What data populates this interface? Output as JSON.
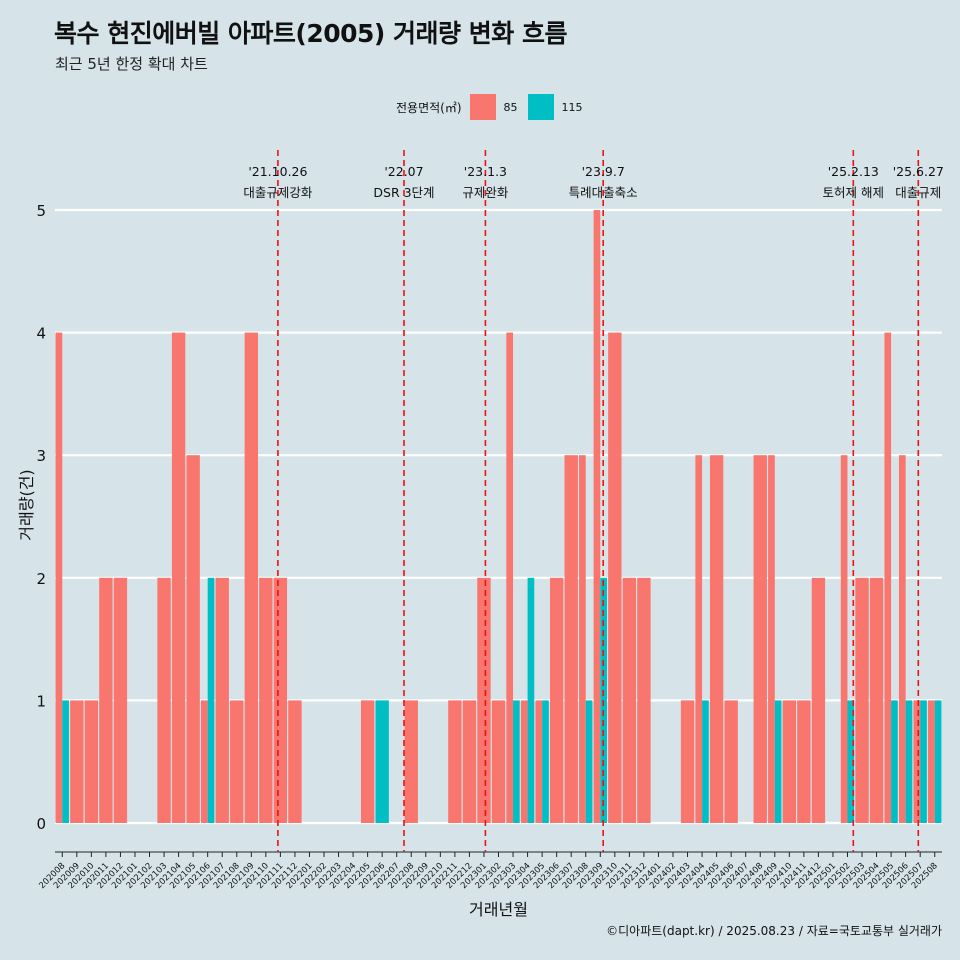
{
  "title": "복수 현진에버빌 아파트(2005) 거래량 변화 흐름",
  "subtitle": "최근 5년 한정 확대 차트",
  "legend_title": "전용면적(㎡)",
  "caption": "©디아파트(dapt.kr) / 2025.08.23 / 자료=국토교통부 실거래가",
  "colors": {
    "s85": "#f8766d",
    "s115": "#00bfc4",
    "background": "#d6e4ea",
    "event_line": "#ee1111"
  },
  "chart_data": {
    "type": "bar",
    "xlabel": "거래년월",
    "ylabel": "거래량(건)",
    "ylim": [
      0,
      5
    ],
    "yticks": [
      0,
      1,
      2,
      3,
      4,
      5
    ],
    "grid": true,
    "legend_position": "top",
    "categories": [
      "202008",
      "202009",
      "202010",
      "202011",
      "202012",
      "202101",
      "202102",
      "202103",
      "202104",
      "202105",
      "202106",
      "202107",
      "202108",
      "202109",
      "202110",
      "202111",
      "202112",
      "202201",
      "202202",
      "202203",
      "202204",
      "202205",
      "202206",
      "202207",
      "202208",
      "202209",
      "202210",
      "202211",
      "202212",
      "202301",
      "202302",
      "202303",
      "202304",
      "202305",
      "202306",
      "202307",
      "202308",
      "202309",
      "202310",
      "202311",
      "202312",
      "202401",
      "202402",
      "202403",
      "202404",
      "202405",
      "202406",
      "202407",
      "202408",
      "202409",
      "202410",
      "202411",
      "202412",
      "202501",
      "202502",
      "202503",
      "202504",
      "202505",
      "202506",
      "202507",
      "202508"
    ],
    "series": [
      {
        "name": "85",
        "values": [
          4,
          1,
          1,
          2,
          2,
          0,
          0,
          2,
          4,
          3,
          1,
          2,
          1,
          4,
          2,
          2,
          1,
          0,
          0,
          0,
          0,
          1,
          0,
          0,
          1,
          0,
          0,
          1,
          1,
          2,
          1,
          4,
          1,
          1,
          2,
          3,
          3,
          5,
          4,
          2,
          2,
          0,
          0,
          1,
          3,
          3,
          1,
          0,
          3,
          3,
          1,
          1,
          2,
          0,
          3,
          2,
          2,
          4,
          3,
          1,
          1
        ]
      },
      {
        "name": "115",
        "values": [
          1,
          0,
          0,
          0,
          0,
          0,
          0,
          0,
          0,
          0,
          2,
          0,
          0,
          0,
          0,
          0,
          0,
          0,
          0,
          0,
          0,
          0,
          1,
          0,
          0,
          0,
          0,
          0,
          0,
          0,
          0,
          1,
          2,
          1,
          0,
          0,
          1,
          2,
          0,
          0,
          0,
          0,
          0,
          0,
          1,
          0,
          0,
          0,
          0,
          1,
          0,
          0,
          0,
          0,
          1,
          0,
          0,
          1,
          1,
          1,
          1
        ]
      }
    ],
    "events": [
      {
        "date": "'21.10.26",
        "label": "대출규제강화",
        "x": 202110.83
      },
      {
        "date": "'22.07",
        "label": "DSR 3단계",
        "x": 202207.5
      },
      {
        "date": "'23.1.3",
        "label": "규제완화",
        "x": 202301.1
      },
      {
        "date": "'23.9.7",
        "label": "특례대출축소",
        "x": 202309.2
      },
      {
        "date": "'25.2.13",
        "label": "토허제 해제",
        "x": 202502.4
      },
      {
        "date": "'25.6.27",
        "label": "대출규제",
        "x": 202506.87
      }
    ]
  }
}
